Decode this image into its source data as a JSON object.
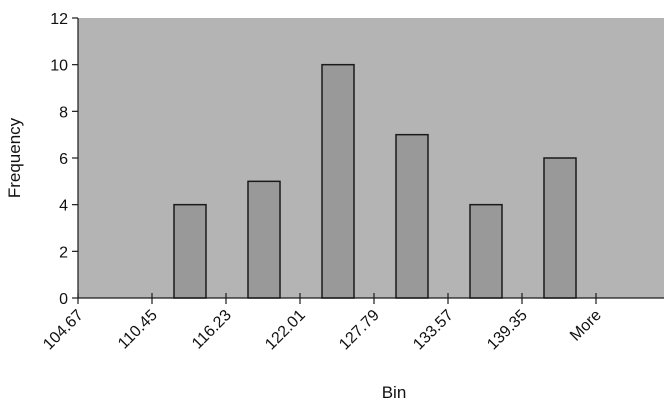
{
  "chart_data": {
    "type": "bar",
    "title": "",
    "xlabel": "Bin",
    "ylabel": "Frequency",
    "categories": [
      "104.67",
      "110.45",
      "116.23",
      "122.01",
      "127.79",
      "133.57",
      "139.35",
      "More"
    ],
    "values": [
      0,
      4,
      5,
      10,
      7,
      4,
      6,
      0
    ],
    "ylim": [
      0,
      12
    ],
    "yticks": [
      0,
      2,
      4,
      6,
      8,
      10,
      12
    ],
    "grid": false,
    "legend": "none",
    "colors": {
      "plot_background": "#b4b4b4",
      "bar_fill": "#999999",
      "bar_stroke": "#1a1a1a",
      "axis": "#1a1a1a"
    }
  }
}
